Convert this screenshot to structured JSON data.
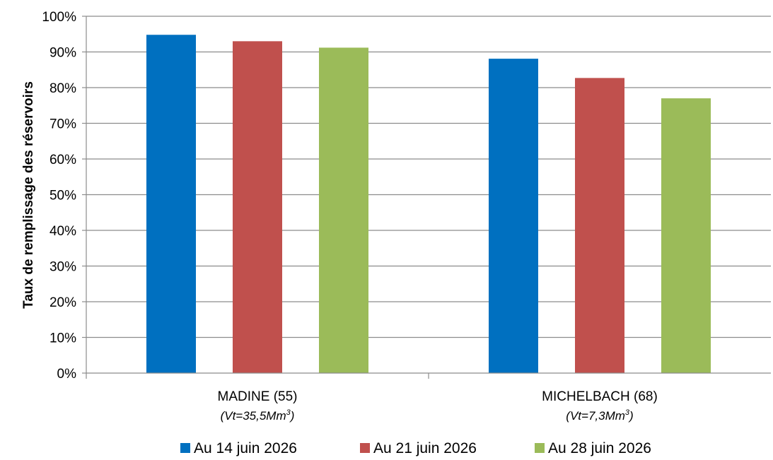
{
  "chart_data": {
    "type": "bar",
    "title": "",
    "xlabel": "",
    "ylabel": "Taux de remplissage des réservoirs",
    "ylim": [
      0,
      100
    ],
    "yticks": [
      "0%",
      "10%",
      "20%",
      "30%",
      "40%",
      "50%",
      "60%",
      "70%",
      "80%",
      "90%",
      "100%"
    ],
    "categories": [
      {
        "label": "MADINE (55)",
        "sub_prefix": "(Vt=35,5Mm",
        "sub_sup": "3",
        "sub_suffix": ")"
      },
      {
        "label": "MICHELBACH (68)",
        "sub_prefix": "(Vt=7,3Mm",
        "sub_sup": "3",
        "sub_suffix": ")"
      }
    ],
    "series": [
      {
        "name": "Au 14 juin 2026",
        "color": "#0070C0",
        "values": [
          94.8,
          88.1
        ]
      },
      {
        "name": "Au 21 juin 2026",
        "color": "#C0504D",
        "values": [
          93.0,
          82.7
        ]
      },
      {
        "name": "Au 28 juin 2026",
        "color": "#9BBB59",
        "values": [
          91.2,
          77.0
        ]
      }
    ],
    "grid": true,
    "legend": "bottom"
  }
}
